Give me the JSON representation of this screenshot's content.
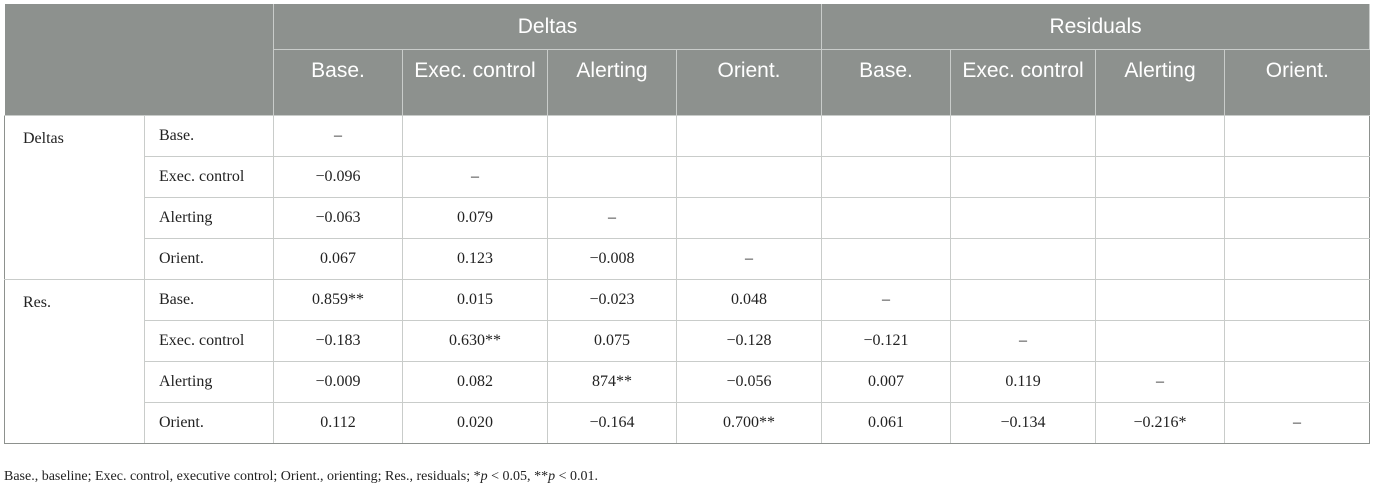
{
  "header": {
    "group_deltas": "Deltas",
    "group_residuals": "Residuals",
    "columns": [
      "Base.",
      "Exec. control",
      "Alerting",
      "Orient.",
      "Base.",
      "Exec. control",
      "Alerting",
      "Orient."
    ]
  },
  "rows": [
    {
      "group": "Deltas",
      "label": "Base.",
      "cells": [
        "–",
        "",
        "",
        "",
        "",
        "",
        "",
        ""
      ]
    },
    {
      "group": "",
      "label": "Exec. control",
      "cells": [
        "−0.096",
        "–",
        "",
        "",
        "",
        "",
        "",
        ""
      ]
    },
    {
      "group": "",
      "label": "Alerting",
      "cells": [
        "−0.063",
        "0.079",
        "–",
        "",
        "",
        "",
        "",
        ""
      ]
    },
    {
      "group": "",
      "label": "Orient.",
      "cells": [
        "0.067",
        "0.123",
        "−0.008",
        "–",
        "",
        "",
        "",
        ""
      ]
    },
    {
      "group": "Res.",
      "label": "Base.",
      "cells": [
        "0.859**",
        "0.015",
        "−0.023",
        "0.048",
        "–",
        "",
        "",
        ""
      ]
    },
    {
      "group": "",
      "label": "Exec. control",
      "cells": [
        "−0.183",
        "0.630**",
        "0.075",
        "−0.128",
        "−0.121",
        "–",
        "",
        ""
      ]
    },
    {
      "group": "",
      "label": "Alerting",
      "cells": [
        "−0.009",
        "0.082",
        "874**",
        "−0.056",
        "0.007",
        "0.119",
        "–",
        ""
      ]
    },
    {
      "group": "",
      "label": "Orient.",
      "cells": [
        "0.112",
        "0.020",
        "−0.164",
        "0.700**",
        "0.061",
        "−0.134",
        "−0.216*",
        "–"
      ]
    }
  ],
  "footnote": {
    "abbrev": "Base., baseline; Exec. control, executive control; Orient., orienting; Res., residuals; ",
    "sig1_prefix": "*",
    "sig1": " < 0.05, ",
    "sig2_prefix": "**",
    "sig2": " < 0.01.",
    "p": "p"
  },
  "colors": {
    "header_bg": "#8d918e",
    "grid": "#c9ccca"
  }
}
